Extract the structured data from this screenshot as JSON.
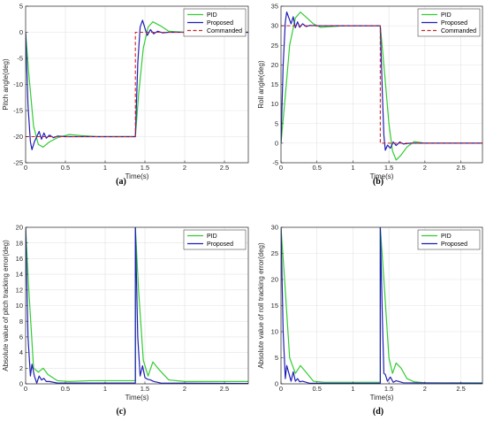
{
  "chart_data": [
    {
      "panel_label": "(a)",
      "type": "line",
      "xlabel": "Time(s)",
      "ylabel": "Pitch angle(deg)",
      "xlim": [
        0,
        2.8
      ],
      "ylim": [
        -25,
        5
      ],
      "xticks": [
        0,
        0.5,
        1,
        1.5,
        2,
        2.5
      ],
      "yticks": [
        -25,
        -20,
        -15,
        -10,
        -5,
        0,
        5
      ],
      "grid": true,
      "legend_position": "top-right",
      "series": [
        {
          "name": "PID",
          "color": "#33cc33",
          "style": "solid",
          "points": [
            [
              0,
              0
            ],
            [
              0.04,
              -8
            ],
            [
              0.1,
              -18
            ],
            [
              0.16,
              -21.5
            ],
            [
              0.22,
              -22
            ],
            [
              0.3,
              -21
            ],
            [
              0.4,
              -20.2
            ],
            [
              0.55,
              -19.6
            ],
            [
              0.7,
              -19.8
            ],
            [
              0.9,
              -20
            ],
            [
              1.38,
              -20
            ],
            [
              1.42,
              -12
            ],
            [
              1.48,
              -3
            ],
            [
              1.54,
              1
            ],
            [
              1.6,
              2
            ],
            [
              1.7,
              1.2
            ],
            [
              1.8,
              0.2
            ],
            [
              2,
              0
            ],
            [
              2.8,
              0
            ]
          ]
        },
        {
          "name": "Proposed",
          "color": "#1f1fb4",
          "style": "solid",
          "points": [
            [
              0,
              0
            ],
            [
              0.03,
              -14
            ],
            [
              0.06,
              -21
            ],
            [
              0.08,
              -22.5
            ],
            [
              0.11,
              -21
            ],
            [
              0.14,
              -20
            ],
            [
              0.17,
              -19
            ],
            [
              0.2,
              -20.5
            ],
            [
              0.23,
              -19.3
            ],
            [
              0.26,
              -20.3
            ],
            [
              0.3,
              -19.7
            ],
            [
              0.35,
              -20.2
            ],
            [
              0.4,
              -19.9
            ],
            [
              0.5,
              -20
            ],
            [
              1.38,
              -20
            ],
            [
              1.41,
              -6
            ],
            [
              1.44,
              1
            ],
            [
              1.47,
              2.3
            ],
            [
              1.5,
              0.8
            ],
            [
              1.53,
              -0.6
            ],
            [
              1.57,
              0.5
            ],
            [
              1.61,
              -0.3
            ],
            [
              1.66,
              0.2
            ],
            [
              1.72,
              -0.1
            ],
            [
              1.8,
              0
            ],
            [
              2.8,
              0
            ]
          ]
        },
        {
          "name": "Commanded",
          "color": "#cc2222",
          "style": "dashed",
          "points": [
            [
              0,
              -20
            ],
            [
              1.38,
              -20
            ],
            [
              1.38,
              0
            ],
            [
              2.8,
              0
            ]
          ]
        }
      ]
    },
    {
      "panel_label": "(b)",
      "type": "line",
      "xlabel": "Time(s)",
      "ylabel": "Roll angle(deg)",
      "xlim": [
        0,
        2.8
      ],
      "ylim": [
        -5,
        35
      ],
      "xticks": [
        0,
        0.5,
        1,
        1.5,
        2,
        2.5
      ],
      "yticks": [
        -5,
        0,
        5,
        10,
        15,
        20,
        25,
        30,
        35
      ],
      "grid": true,
      "legend_position": "top-right",
      "series": [
        {
          "name": "PID",
          "color": "#33cc33",
          "style": "solid",
          "points": [
            [
              0,
              0
            ],
            [
              0.05,
              10
            ],
            [
              0.12,
              25
            ],
            [
              0.2,
              32
            ],
            [
              0.27,
              33.5
            ],
            [
              0.35,
              32.2
            ],
            [
              0.45,
              30.5
            ],
            [
              0.55,
              29.6
            ],
            [
              0.7,
              29.8
            ],
            [
              0.9,
              30
            ],
            [
              1.38,
              30
            ],
            [
              1.43,
              20
            ],
            [
              1.5,
              5
            ],
            [
              1.55,
              -2
            ],
            [
              1.6,
              -4.3
            ],
            [
              1.67,
              -3
            ],
            [
              1.75,
              -1
            ],
            [
              1.85,
              0.4
            ],
            [
              2,
              0
            ],
            [
              2.8,
              0
            ]
          ]
        },
        {
          "name": "Proposed",
          "color": "#1f1fb4",
          "style": "solid",
          "points": [
            [
              0,
              0
            ],
            [
              0.03,
              20
            ],
            [
              0.06,
              31
            ],
            [
              0.08,
              33.5
            ],
            [
              0.11,
              32
            ],
            [
              0.14,
              30.5
            ],
            [
              0.17,
              32.3
            ],
            [
              0.2,
              29.5
            ],
            [
              0.23,
              31
            ],
            [
              0.26,
              29.6
            ],
            [
              0.3,
              30.5
            ],
            [
              0.35,
              29.8
            ],
            [
              0.4,
              30.1
            ],
            [
              0.5,
              30
            ],
            [
              1.38,
              30
            ],
            [
              1.41,
              12
            ],
            [
              1.43,
              2
            ],
            [
              1.45,
              -1.8
            ],
            [
              1.48,
              -0.5
            ],
            [
              1.52,
              -1.3
            ],
            [
              1.56,
              0.3
            ],
            [
              1.6,
              -0.6
            ],
            [
              1.65,
              0.3
            ],
            [
              1.7,
              -0.2
            ],
            [
              1.8,
              0
            ],
            [
              2.8,
              0
            ]
          ]
        },
        {
          "name": "Commanded",
          "color": "#cc2222",
          "style": "dashed",
          "points": [
            [
              0,
              30
            ],
            [
              1.38,
              30
            ],
            [
              1.38,
              0
            ],
            [
              2.8,
              0
            ]
          ]
        }
      ]
    },
    {
      "panel_label": "(c)",
      "type": "line",
      "xlabel": "Time(s)",
      "ylabel": "Absolute value of pitch tracking error(deg)",
      "xlim": [
        0,
        2.8
      ],
      "ylim": [
        0,
        20
      ],
      "xticks": [
        0,
        0.5,
        1,
        1.5,
        2,
        2.5
      ],
      "yticks": [
        0,
        2,
        4,
        6,
        8,
        10,
        12,
        14,
        16,
        18,
        20
      ],
      "grid": true,
      "legend_position": "top-right",
      "series": [
        {
          "name": "PID",
          "color": "#33cc33",
          "style": "solid",
          "points": [
            [
              0,
              20
            ],
            [
              0.04,
              12
            ],
            [
              0.1,
              2
            ],
            [
              0.16,
              1.5
            ],
            [
              0.22,
              2
            ],
            [
              0.28,
              1.2
            ],
            [
              0.4,
              0.4
            ],
            [
              0.55,
              0.3
            ],
            [
              0.8,
              0.4
            ],
            [
              1.38,
              0.4
            ],
            [
              1.38,
              20
            ],
            [
              1.42,
              12
            ],
            [
              1.48,
              3
            ],
            [
              1.54,
              1
            ],
            [
              1.6,
              2.8
            ],
            [
              1.68,
              1.8
            ],
            [
              1.8,
              0.5
            ],
            [
              2,
              0.3
            ],
            [
              2.8,
              0.3
            ]
          ]
        },
        {
          "name": "Proposed",
          "color": "#1f1fb4",
          "style": "solid",
          "points": [
            [
              0,
              20
            ],
            [
              0.03,
              6
            ],
            [
              0.06,
              1
            ],
            [
              0.08,
              2.5
            ],
            [
              0.11,
              1
            ],
            [
              0.14,
              0.1
            ],
            [
              0.17,
              1
            ],
            [
              0.2,
              0.5
            ],
            [
              0.23,
              0.7
            ],
            [
              0.26,
              0.3
            ],
            [
              0.3,
              0.3
            ],
            [
              0.4,
              0.1
            ],
            [
              0.6,
              0.1
            ],
            [
              1.38,
              0.1
            ],
            [
              1.38,
              20
            ],
            [
              1.41,
              6
            ],
            [
              1.44,
              1
            ],
            [
              1.47,
              2.3
            ],
            [
              1.5,
              0.8
            ],
            [
              1.53,
              0.6
            ],
            [
              1.57,
              0.5
            ],
            [
              1.61,
              0.3
            ],
            [
              1.7,
              0.1
            ],
            [
              2.8,
              0.05
            ]
          ]
        }
      ]
    },
    {
      "panel_label": "(d)",
      "type": "line",
      "xlabel": "Time(s)",
      "ylabel": "Absolute value of roll tracking error(deg)",
      "xlim": [
        0,
        2.8
      ],
      "ylim": [
        0,
        30
      ],
      "xticks": [
        0,
        0.5,
        1,
        1.5,
        2,
        2.5
      ],
      "yticks": [
        0,
        5,
        10,
        15,
        20,
        25,
        30
      ],
      "grid": true,
      "legend_position": "top-right",
      "series": [
        {
          "name": "PID",
          "color": "#33cc33",
          "style": "solid",
          "points": [
            [
              0,
              30
            ],
            [
              0.05,
              20
            ],
            [
              0.12,
              5
            ],
            [
              0.2,
              2
            ],
            [
              0.27,
              3.5
            ],
            [
              0.35,
              2.2
            ],
            [
              0.45,
              0.5
            ],
            [
              0.6,
              0.3
            ],
            [
              0.9,
              0.3
            ],
            [
              1.38,
              0.3
            ],
            [
              1.38,
              30
            ],
            [
              1.43,
              20
            ],
            [
              1.5,
              5
            ],
            [
              1.55,
              2
            ],
            [
              1.6,
              4
            ],
            [
              1.67,
              3
            ],
            [
              1.75,
              1
            ],
            [
              1.85,
              0.4
            ],
            [
              2,
              0.2
            ],
            [
              2.8,
              0.2
            ]
          ]
        },
        {
          "name": "Proposed",
          "color": "#1f1fb4",
          "style": "solid",
          "points": [
            [
              0,
              30
            ],
            [
              0.03,
              10
            ],
            [
              0.06,
              1
            ],
            [
              0.08,
              3.5
            ],
            [
              0.11,
              2
            ],
            [
              0.14,
              0.5
            ],
            [
              0.17,
              2.3
            ],
            [
              0.2,
              0.5
            ],
            [
              0.23,
              1
            ],
            [
              0.26,
              0.4
            ],
            [
              0.3,
              0.5
            ],
            [
              0.4,
              0.1
            ],
            [
              0.6,
              0.1
            ],
            [
              1.38,
              0.1
            ],
            [
              1.38,
              30
            ],
            [
              1.41,
              12
            ],
            [
              1.43,
              2
            ],
            [
              1.45,
              1.8
            ],
            [
              1.48,
              0.5
            ],
            [
              1.52,
              1.3
            ],
            [
              1.56,
              0.3
            ],
            [
              1.6,
              0.6
            ],
            [
              1.7,
              0.2
            ],
            [
              2.8,
              0.1
            ]
          ]
        }
      ]
    }
  ]
}
